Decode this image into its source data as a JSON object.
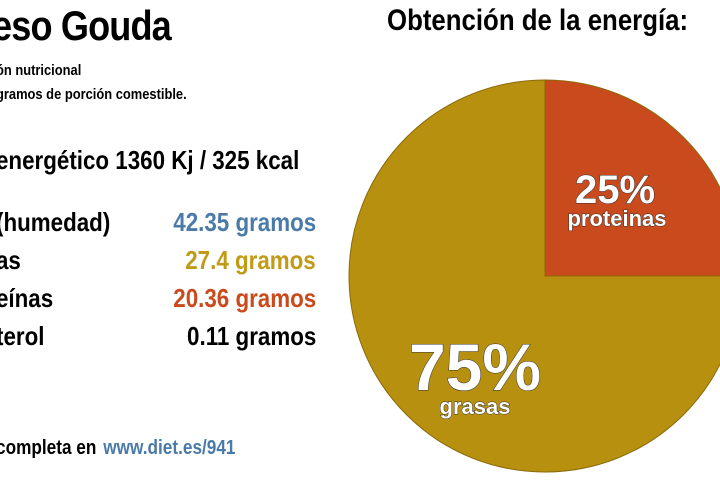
{
  "title": "eso Gouda",
  "subtitle_line1": "ón nutricional",
  "subtitle_line2": "gramos de porción comestible.",
  "energy": "energético 1360 Kj / 325 kcal",
  "nutrients": [
    {
      "label": "(humedad)",
      "value": "42.35 gramos",
      "color": "#4a7aa8"
    },
    {
      "label": "as",
      "value": "27.4 gramos",
      "color": "#c19a16"
    },
    {
      "label": "eínas",
      "value": "20.36 gramos",
      "color": "#c94a1c"
    },
    {
      "label": "terol",
      "value": "0.11 gramos",
      "color": "#000000"
    }
  ],
  "footer": {
    "text": "completa en",
    "url": "www.diet.es/941"
  },
  "chart_data": {
    "type": "pie",
    "title": "Obtención de la energía:",
    "slices": [
      {
        "label": "proteinas",
        "percent_text": "25%",
        "value": 25,
        "color": "#c94a1c"
      },
      {
        "label": "grasas",
        "percent_text": "75%",
        "value": 75,
        "color": "#b8900f"
      }
    ]
  }
}
